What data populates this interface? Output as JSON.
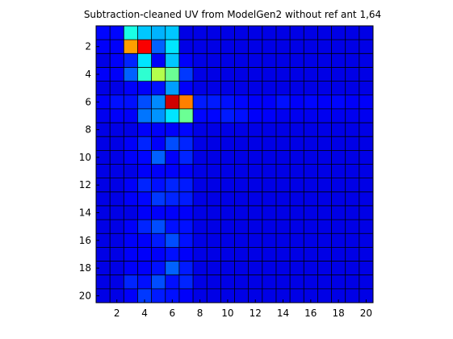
{
  "chart_data": {
    "type": "heatmap",
    "title": "Subtraction-cleaned UV from ModelGen2 without ref ant 1,64",
    "xlabel": "",
    "ylabel": "",
    "xlim": [
      0.5,
      20.5
    ],
    "ylim": [
      0.5,
      20.5
    ],
    "y_reversed": true,
    "x_ticks": [
      2,
      4,
      6,
      8,
      10,
      12,
      14,
      16,
      18,
      20
    ],
    "y_ticks": [
      2,
      4,
      6,
      8,
      10,
      12,
      14,
      16,
      18,
      20
    ],
    "colormap": "jet",
    "color_range": [
      0,
      1
    ],
    "grid_lines": true,
    "grid_color": "#000000",
    "values": [
      [
        0.13,
        0.13,
        0.4,
        0.32,
        0.3,
        0.32,
        0.1,
        0.1,
        0.1,
        0.1,
        0.1,
        0.1,
        0.1,
        0.1,
        0.1,
        0.1,
        0.1,
        0.1,
        0.1,
        0.1
      ],
      [
        0.12,
        0.12,
        0.72,
        0.88,
        0.22,
        0.35,
        0.1,
        0.1,
        0.1,
        0.1,
        0.1,
        0.1,
        0.1,
        0.1,
        0.1,
        0.1,
        0.1,
        0.1,
        0.1,
        0.1
      ],
      [
        0.1,
        0.12,
        0.16,
        0.35,
        0.12,
        0.32,
        0.12,
        0.1,
        0.1,
        0.1,
        0.1,
        0.1,
        0.1,
        0.1,
        0.1,
        0.1,
        0.1,
        0.1,
        0.1,
        0.1
      ],
      [
        0.12,
        0.12,
        0.22,
        0.42,
        0.55,
        0.48,
        0.18,
        0.1,
        0.1,
        0.1,
        0.1,
        0.1,
        0.1,
        0.1,
        0.1,
        0.1,
        0.1,
        0.1,
        0.1,
        0.1
      ],
      [
        0.1,
        0.1,
        0.12,
        0.12,
        0.14,
        0.28,
        0.12,
        0.1,
        0.1,
        0.1,
        0.1,
        0.1,
        0.1,
        0.1,
        0.1,
        0.1,
        0.1,
        0.1,
        0.1,
        0.1
      ],
      [
        0.12,
        0.14,
        0.14,
        0.2,
        0.26,
        0.92,
        0.75,
        0.15,
        0.15,
        0.14,
        0.13,
        0.12,
        0.12,
        0.14,
        0.12,
        0.13,
        0.12,
        0.13,
        0.12,
        0.12
      ],
      [
        0.11,
        0.12,
        0.12,
        0.24,
        0.27,
        0.35,
        0.48,
        0.13,
        0.13,
        0.15,
        0.14,
        0.12,
        0.12,
        0.11,
        0.11,
        0.11,
        0.11,
        0.11,
        0.11,
        0.11
      ],
      [
        0.1,
        0.1,
        0.1,
        0.12,
        0.12,
        0.12,
        0.13,
        0.1,
        0.1,
        0.1,
        0.1,
        0.1,
        0.1,
        0.1,
        0.1,
        0.1,
        0.1,
        0.1,
        0.1,
        0.1
      ],
      [
        0.1,
        0.1,
        0.12,
        0.16,
        0.12,
        0.2,
        0.16,
        0.1,
        0.1,
        0.1,
        0.1,
        0.1,
        0.1,
        0.1,
        0.1,
        0.1,
        0.1,
        0.1,
        0.1,
        0.1
      ],
      [
        0.1,
        0.1,
        0.12,
        0.13,
        0.22,
        0.12,
        0.16,
        0.1,
        0.1,
        0.1,
        0.1,
        0.1,
        0.1,
        0.1,
        0.1,
        0.1,
        0.1,
        0.1,
        0.1,
        0.1
      ],
      [
        0.1,
        0.1,
        0.1,
        0.12,
        0.12,
        0.12,
        0.12,
        0.1,
        0.1,
        0.1,
        0.1,
        0.1,
        0.1,
        0.1,
        0.1,
        0.1,
        0.1,
        0.1,
        0.1,
        0.1
      ],
      [
        0.1,
        0.1,
        0.12,
        0.16,
        0.14,
        0.16,
        0.15,
        0.1,
        0.1,
        0.1,
        0.1,
        0.1,
        0.1,
        0.1,
        0.1,
        0.1,
        0.1,
        0.1,
        0.1,
        0.1
      ],
      [
        0.1,
        0.1,
        0.12,
        0.13,
        0.18,
        0.16,
        0.15,
        0.1,
        0.1,
        0.1,
        0.1,
        0.1,
        0.1,
        0.1,
        0.1,
        0.1,
        0.1,
        0.1,
        0.1,
        0.1
      ],
      [
        0.1,
        0.1,
        0.1,
        0.12,
        0.12,
        0.12,
        0.12,
        0.1,
        0.1,
        0.1,
        0.1,
        0.1,
        0.1,
        0.1,
        0.1,
        0.1,
        0.1,
        0.1,
        0.1,
        0.1
      ],
      [
        0.1,
        0.1,
        0.12,
        0.16,
        0.2,
        0.14,
        0.14,
        0.1,
        0.1,
        0.1,
        0.1,
        0.1,
        0.1,
        0.1,
        0.1,
        0.1,
        0.1,
        0.1,
        0.1,
        0.1
      ],
      [
        0.1,
        0.1,
        0.12,
        0.12,
        0.15,
        0.2,
        0.14,
        0.1,
        0.1,
        0.1,
        0.1,
        0.1,
        0.1,
        0.1,
        0.1,
        0.1,
        0.1,
        0.1,
        0.1,
        0.1
      ],
      [
        0.1,
        0.1,
        0.12,
        0.12,
        0.12,
        0.14,
        0.12,
        0.1,
        0.1,
        0.1,
        0.1,
        0.1,
        0.1,
        0.1,
        0.1,
        0.1,
        0.1,
        0.1,
        0.1,
        0.1
      ],
      [
        0.1,
        0.1,
        0.12,
        0.12,
        0.14,
        0.22,
        0.15,
        0.1,
        0.1,
        0.1,
        0.1,
        0.1,
        0.1,
        0.1,
        0.1,
        0.1,
        0.1,
        0.1,
        0.1,
        0.1
      ],
      [
        0.1,
        0.1,
        0.16,
        0.14,
        0.2,
        0.14,
        0.16,
        0.1,
        0.1,
        0.1,
        0.1,
        0.1,
        0.1,
        0.1,
        0.1,
        0.1,
        0.1,
        0.1,
        0.1,
        0.1
      ],
      [
        0.1,
        0.1,
        0.12,
        0.18,
        0.15,
        0.14,
        0.12,
        0.1,
        0.1,
        0.1,
        0.1,
        0.1,
        0.1,
        0.1,
        0.1,
        0.1,
        0.1,
        0.1,
        0.1,
        0.1
      ]
    ]
  }
}
